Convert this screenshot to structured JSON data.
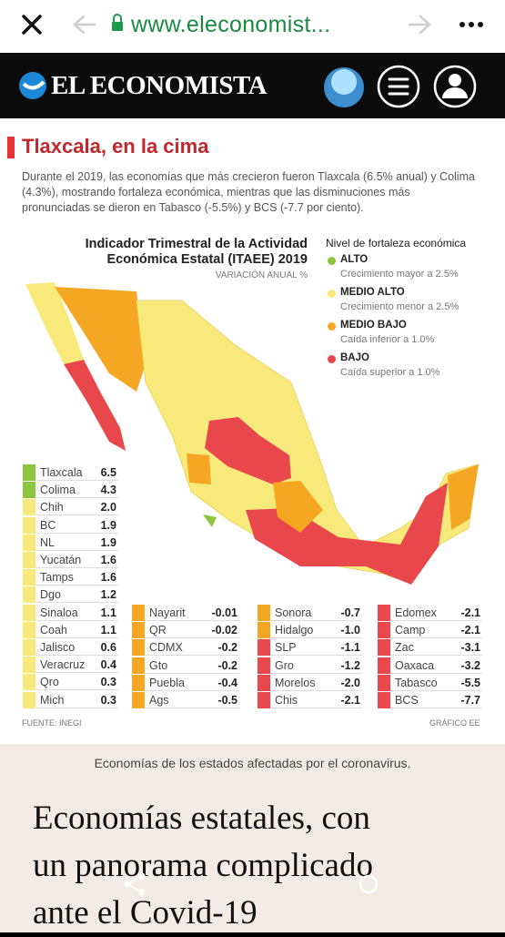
{
  "browser": {
    "url": "www.eleconomist..."
  },
  "site": {
    "name": "EL ECONOMISTA"
  },
  "infographic": {
    "heading": "Tlaxcala, en la cima",
    "intro": "Durante el 2019, las economías que más crecieron fueron Tlaxcala (6.5% anual) y Colima (4.3%), mostrando fortaleza económica, mientras que las disminuciones más pronunciadas se dieron en Tabasco (-5.5%) y BCS (-7.7 por ciento).",
    "title_line1": "Indicador Trimestral de la Actividad",
    "title_line2": "Económica Estatal (ITAEE) 2019",
    "subtitle": "VARIACIÓN ANUAL %",
    "legend_title": "Nivel de fortaleza económica",
    "legend": [
      {
        "label": "ALTO",
        "color": "#8cc63f"
      },
      {
        "label": "MEDIO ALTO",
        "desc": "Crecimiento menor a 2.5%",
        "color": "#f7ea7a"
      },
      {
        "label": "MEDIO BAJO",
        "desc": "Caída inferior a 1.0%",
        "color": "#f5a623"
      },
      {
        "label": "BAJO",
        "desc": "Caída superior a 1.0%",
        "color": "#e8474c"
      }
    ],
    "legend_alto_desc": "Crecimiento mayor a 2.5%",
    "tables": [
      [
        {
          "name": "Tlaxcala",
          "value": "6.5",
          "color": "#8cc63f"
        },
        {
          "name": "Colima",
          "value": "4.3",
          "color": "#8cc63f"
        },
        {
          "name": "Chih",
          "value": "2.0",
          "color": "#f7ea7a"
        },
        {
          "name": "BC",
          "value": "1.9",
          "color": "#f7ea7a"
        },
        {
          "name": "NL",
          "value": "1.9",
          "color": "#f7ea7a"
        },
        {
          "name": "Yucatán",
          "value": "1.6",
          "color": "#f7ea7a"
        },
        {
          "name": "Tamps",
          "value": "1.6",
          "color": "#f7ea7a"
        },
        {
          "name": "Dgo",
          "value": "1.2",
          "color": "#f7ea7a"
        },
        {
          "name": "Sinaloa",
          "value": "1.1",
          "color": "#f7ea7a"
        },
        {
          "name": "Coah",
          "value": "1.1",
          "color": "#f7ea7a"
        },
        {
          "name": "Jalisco",
          "value": "0.6",
          "color": "#f7ea7a"
        },
        {
          "name": "Veracruz",
          "value": "0.4",
          "color": "#f7ea7a"
        },
        {
          "name": "Qro",
          "value": "0.3",
          "color": "#f7ea7a"
        },
        {
          "name": "Mich",
          "value": "0.3",
          "color": "#f7ea7a"
        }
      ],
      [
        {
          "name": "Nayarit",
          "value": "-0.01",
          "color": "#f5a623"
        },
        {
          "name": "QR",
          "value": "-0.02",
          "color": "#f5a623"
        },
        {
          "name": "CDMX",
          "value": "-0.2",
          "color": "#f5a623"
        },
        {
          "name": "Gto",
          "value": "-0.2",
          "color": "#f5a623"
        },
        {
          "name": "Puebla",
          "value": "-0.4",
          "color": "#f5a623"
        },
        {
          "name": "Ags",
          "value": "-0.5",
          "color": "#f5a623"
        }
      ],
      [
        {
          "name": "Sonora",
          "value": "-0.7",
          "color": "#f5a623"
        },
        {
          "name": "Hidalgo",
          "value": "-1.0",
          "color": "#f5a623"
        },
        {
          "name": "SLP",
          "value": "-1.1",
          "color": "#e8474c"
        },
        {
          "name": "Gro",
          "value": "-1.2",
          "color": "#e8474c"
        },
        {
          "name": "Morelos",
          "value": "-2.0",
          "color": "#e8474c"
        },
        {
          "name": "Chis",
          "value": "-2.1",
          "color": "#e8474c"
        }
      ],
      [
        {
          "name": "Edomex",
          "value": "-2.1",
          "color": "#e8474c"
        },
        {
          "name": "Camp",
          "value": "-2.1",
          "color": "#e8474c"
        },
        {
          "name": "Zac",
          "value": "-3.1",
          "color": "#e8474c"
        },
        {
          "name": "Oaxaca",
          "value": "-3.2",
          "color": "#e8474c"
        },
        {
          "name": "Tabasco",
          "value": "-5.5",
          "color": "#e8474c"
        },
        {
          "name": "BCS",
          "value": "-7.7",
          "color": "#e8474c"
        }
      ]
    ],
    "source": "FUENTE: INEGI",
    "credit": "GRÁFICO EE"
  },
  "caption": "Economías de los estados afectadas por el coronavirus.",
  "headline": [
    "Economías estatales, con",
    "un panorama complicado",
    "ante el Covid-19"
  ]
}
